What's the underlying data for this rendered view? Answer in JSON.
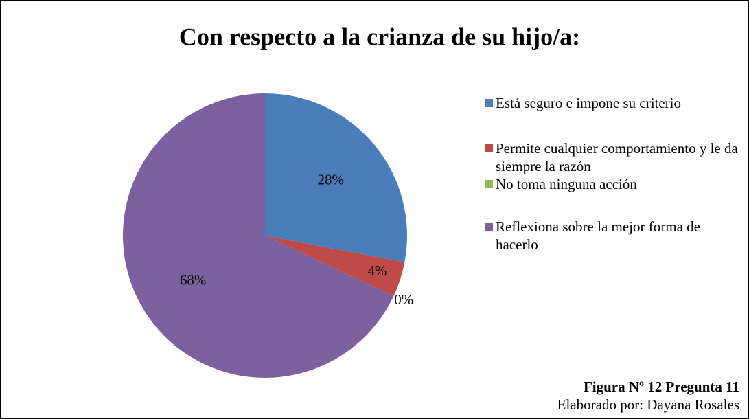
{
  "chart_data": {
    "type": "pie",
    "title": "Con respecto a la crianza de su hijo/a:",
    "categories": [
      "Está seguro e impone su criterio",
      "Permite cualquier comportamiento y le da siempre la razón",
      "No toma ninguna acción",
      "Reflexiona sobre la mejor forma de hacerlo"
    ],
    "values": [
      28,
      4,
      0,
      68
    ],
    "value_labels": [
      "28%",
      "4%",
      "0%",
      "68%"
    ],
    "colors": [
      "#4a7ebb",
      "#be4b48",
      "#98b954",
      "#7d60a0"
    ],
    "legend": "right",
    "figure_label": "Figura Nº 12 Pregunta 11",
    "credit": "Elaborado por: Dayana Rosales"
  }
}
